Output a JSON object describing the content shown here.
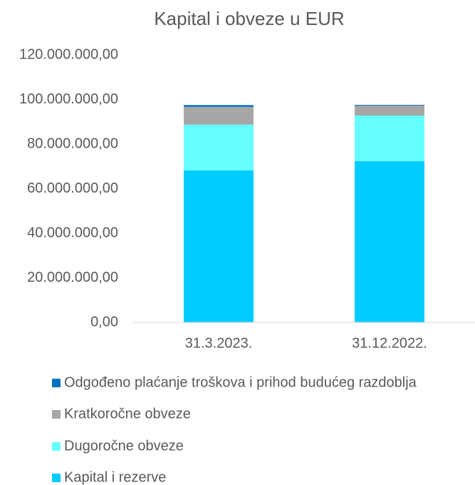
{
  "chart_data": {
    "type": "stacked_bar",
    "title": "Kapital i obveze u EUR",
    "categories": [
      "31.3.2023.",
      "31.12.2022."
    ],
    "series": [
      {
        "name": "Kapital i rezerve",
        "color": "#00ccff",
        "values": [
          68200000,
          72300000
        ]
      },
      {
        "name": "Dugoročne obveze",
        "color": "#66ffff",
        "values": [
          20500000,
          20500000
        ]
      },
      {
        "name": "Kratkoročne obveze",
        "color": "#a6a6a6",
        "values": [
          8000000,
          4500000
        ]
      },
      {
        "name": "Odgođeno plaćanje troškova i prihod budućeg razdoblja",
        "color": "#0070c0",
        "values": [
          800000,
          300000
        ]
      }
    ],
    "ylim": [
      0,
      120000000
    ],
    "yticks": [
      {
        "value": 0,
        "label": "0,00"
      },
      {
        "value": 20000000,
        "label": "20.000.000,00"
      },
      {
        "value": 40000000,
        "label": "40.000.000,00"
      },
      {
        "value": 60000000,
        "label": "60.000.000,00"
      },
      {
        "value": 80000000,
        "label": "80.000.000,00"
      },
      {
        "value": 100000000,
        "label": "100.000.000,00"
      },
      {
        "value": 120000000,
        "label": "120.000.000,00"
      }
    ],
    "grid": false
  }
}
